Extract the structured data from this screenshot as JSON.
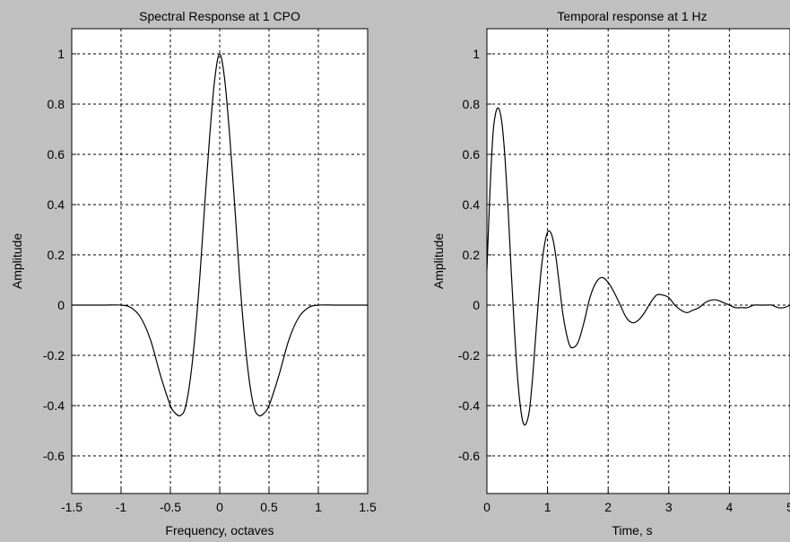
{
  "figure": {
    "background": "#c0c0c0",
    "axes_background": "#ffffff",
    "line_color": "#000000"
  },
  "chart_data": [
    {
      "type": "line",
      "title": "Spectral Response at 1 CPO",
      "xlabel": "Frequency, octaves",
      "ylabel": "Amplitude",
      "xlim": [
        -1.5,
        1.5
      ],
      "ylim": [
        -0.75,
        1.1
      ],
      "xticks": [
        -1.5,
        -1,
        -0.5,
        0,
        0.5,
        1,
        1.5
      ],
      "xtick_labels": [
        "-1.5",
        "-1",
        "-0.5",
        "0",
        "0.5",
        "1",
        "1.5"
      ],
      "yticks": [
        -0.6,
        -0.4,
        -0.2,
        0,
        0.2,
        0.4,
        0.6,
        0.8,
        1
      ],
      "ytick_labels": [
        "-0.6",
        "-0.4",
        "-0.2",
        "0",
        "0.2",
        "0.4",
        "0.6",
        "0.8",
        "1"
      ],
      "grid": true,
      "series": [
        {
          "x": [
            -1.5,
            -1.2,
            -1.0,
            -0.9,
            -0.8,
            -0.7,
            -0.6,
            -0.5,
            -0.45,
            -0.4,
            -0.35,
            -0.3,
            -0.25,
            -0.2,
            -0.15,
            -0.1,
            -0.05,
            0,
            0.05,
            0.1,
            0.15,
            0.2,
            0.25,
            0.3,
            0.35,
            0.4,
            0.45,
            0.5,
            0.6,
            0.7,
            0.8,
            0.9,
            1.0,
            1.2,
            1.5
          ],
          "y": [
            0,
            0,
            0,
            -0.01,
            -0.05,
            -0.14,
            -0.28,
            -0.4,
            -0.43,
            -0.44,
            -0.41,
            -0.3,
            -0.12,
            0.12,
            0.41,
            0.68,
            0.9,
            1.0,
            0.9,
            0.68,
            0.41,
            0.12,
            -0.12,
            -0.3,
            -0.41,
            -0.44,
            -0.43,
            -0.4,
            -0.28,
            -0.14,
            -0.05,
            -0.01,
            0,
            0,
            0
          ]
        }
      ]
    },
    {
      "type": "line",
      "title": "Temporal response at 1 Hz",
      "xlabel": "Time, s",
      "ylabel": "Amplitude",
      "xlim": [
        0,
        5
      ],
      "ylim": [
        -0.75,
        1.1
      ],
      "xticks": [
        0,
        1,
        2,
        3,
        4,
        5
      ],
      "xtick_labels": [
        "0",
        "1",
        "2",
        "3",
        "4",
        "5"
      ],
      "yticks": [
        -0.6,
        -0.4,
        -0.2,
        0,
        0.2,
        0.4,
        0.6,
        0.8,
        1
      ],
      "ytick_labels": [
        "-0.6",
        "-0.4",
        "-0.2",
        "0",
        "0.2",
        "0.4",
        "0.6",
        "0.8",
        "1"
      ],
      "grid": true,
      "series": [
        {
          "x": [
            0,
            0.05,
            0.1,
            0.15,
            0.2,
            0.25,
            0.3,
            0.35,
            0.4,
            0.45,
            0.5,
            0.55,
            0.6,
            0.65,
            0.7,
            0.75,
            0.8,
            0.85,
            0.9,
            0.95,
            1.0,
            1.05,
            1.1,
            1.15,
            1.2,
            1.25,
            1.3,
            1.35,
            1.4,
            1.5,
            1.6,
            1.7,
            1.8,
            1.9,
            2.0,
            2.1,
            2.2,
            2.3,
            2.4,
            2.5,
            2.6,
            2.7,
            2.8,
            2.9,
            3.0,
            3.1,
            3.2,
            3.3,
            3.4,
            3.5,
            3.6,
            3.7,
            3.8,
            3.9,
            4.0,
            4.1,
            4.2,
            4.3,
            4.4,
            4.5,
            4.6,
            4.7,
            4.8,
            4.9,
            5.0
          ],
          "y": [
            0.14,
            0.45,
            0.68,
            0.77,
            0.78,
            0.72,
            0.58,
            0.38,
            0.14,
            -0.08,
            -0.27,
            -0.4,
            -0.47,
            -0.47,
            -0.42,
            -0.3,
            -0.14,
            0.02,
            0.15,
            0.24,
            0.29,
            0.29,
            0.25,
            0.17,
            0.07,
            -0.03,
            -0.1,
            -0.15,
            -0.17,
            -0.15,
            -0.07,
            0.03,
            0.09,
            0.11,
            0.09,
            0.05,
            0.0,
            -0.05,
            -0.07,
            -0.06,
            -0.03,
            0.01,
            0.04,
            0.04,
            0.03,
            0.0,
            -0.02,
            -0.03,
            -0.02,
            -0.01,
            0.01,
            0.02,
            0.02,
            0.01,
            0.0,
            -0.01,
            -0.01,
            -0.01,
            0.0,
            0.0,
            0.0,
            0.0,
            -0.01,
            -0.01,
            0.0
          ]
        }
      ]
    }
  ]
}
